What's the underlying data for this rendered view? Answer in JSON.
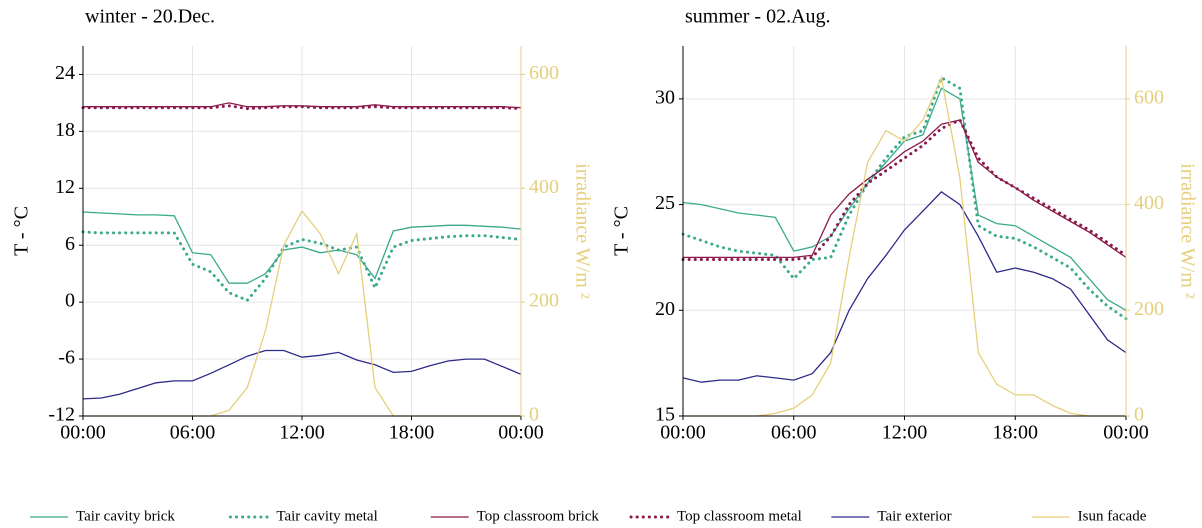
{
  "chart_data": [
    {
      "type": "line",
      "title": "winter - 20.Dec.",
      "ylabel": "T - °C",
      "y2label": "irradiance W/m ²",
      "x": [
        0,
        1,
        2,
        3,
        4,
        5,
        6,
        7,
        8,
        9,
        10,
        11,
        12,
        13,
        14,
        15,
        16,
        17,
        18,
        19,
        20,
        21,
        22,
        23,
        24
      ],
      "xlim": [
        0,
        24
      ],
      "xticks": [
        {
          "value": 0,
          "label": "00:00"
        },
        {
          "value": 6,
          "label": "06:00"
        },
        {
          "value": 12,
          "label": "12:00"
        },
        {
          "value": 18,
          "label": "18:00"
        },
        {
          "value": 24,
          "label": "00:00"
        }
      ],
      "ylim": [
        -12,
        27
      ],
      "yticks": [
        -12,
        -6,
        0,
        6,
        12,
        18,
        24
      ],
      "y2lim": [
        0,
        650
      ],
      "y2ticks": [
        0,
        200,
        400,
        600
      ],
      "grid": true,
      "series": [
        {
          "name": "Tair cavity brick",
          "color": "#3aaa8c",
          "style": "solid",
          "values": [
            9.5,
            9.4,
            9.3,
            9.2,
            9.2,
            9.1,
            5.2,
            5.0,
            2.0,
            2.0,
            3.0,
            5.5,
            5.8,
            5.2,
            5.5,
            5.0,
            2.5,
            7.5,
            7.9,
            8.0,
            8.1,
            8.1,
            8.0,
            7.9,
            7.7
          ]
        },
        {
          "name": "Tair cavity metal",
          "color": "#3aaa8c",
          "style": "dotted",
          "values": [
            7.4,
            7.3,
            7.3,
            7.3,
            7.3,
            7.3,
            4.0,
            3.2,
            1.0,
            0.2,
            2.5,
            5.8,
            6.6,
            6.2,
            5.5,
            5.8,
            1.5,
            5.8,
            6.5,
            6.7,
            6.9,
            7.0,
            7.0,
            6.8,
            6.6
          ]
        },
        {
          "name": "Top classroom brick",
          "color": "#8b1a4a",
          "style": "solid",
          "values": [
            20.6,
            20.6,
            20.6,
            20.6,
            20.6,
            20.6,
            20.6,
            20.6,
            21.0,
            20.6,
            20.6,
            20.7,
            20.7,
            20.6,
            20.6,
            20.6,
            20.8,
            20.6,
            20.6,
            20.6,
            20.6,
            20.6,
            20.6,
            20.6,
            20.5
          ]
        },
        {
          "name": "Top classroom metal",
          "color": "#8b1a4a",
          "style": "dotted",
          "values": [
            20.5,
            20.5,
            20.5,
            20.5,
            20.5,
            20.5,
            20.5,
            20.5,
            20.7,
            20.4,
            20.5,
            20.6,
            20.6,
            20.5,
            20.5,
            20.5,
            20.6,
            20.5,
            20.5,
            20.5,
            20.5,
            20.5,
            20.5,
            20.5,
            20.4
          ]
        },
        {
          "name": "Tair exterior",
          "color": "#2e2a8a",
          "style": "solid",
          "values": [
            -10.2,
            -10.1,
            -9.7,
            -9.1,
            -8.5,
            -8.3,
            -8.3,
            -7.5,
            -6.6,
            -5.7,
            -5.1,
            -5.1,
            -5.8,
            -5.6,
            -5.3,
            -6.1,
            -6.6,
            -7.4,
            -7.3,
            -6.7,
            -6.2,
            -6.0,
            -6.0,
            -6.8,
            -7.6
          ]
        },
        {
          "name": "Isun facade",
          "color": "#e6cf7c",
          "style": "solid",
          "axis": "y2",
          "values": [
            0,
            0,
            0,
            0,
            0,
            0,
            0,
            0,
            10,
            50,
            150,
            300,
            360,
            320,
            250,
            320,
            50,
            0,
            0,
            0,
            0,
            0,
            0,
            0,
            0
          ]
        }
      ]
    },
    {
      "type": "line",
      "title": "summer - 02.Aug.",
      "ylabel": "T - °C",
      "y2label": "irradiance W/m ²",
      "x": [
        0,
        1,
        2,
        3,
        4,
        5,
        6,
        7,
        8,
        9,
        10,
        11,
        12,
        13,
        14,
        15,
        16,
        17,
        18,
        19,
        20,
        21,
        22,
        23,
        24
      ],
      "xlim": [
        0,
        24
      ],
      "xticks": [
        {
          "value": 0,
          "label": "00:00"
        },
        {
          "value": 6,
          "label": "06:00"
        },
        {
          "value": 12,
          "label": "12:00"
        },
        {
          "value": 18,
          "label": "18:00"
        },
        {
          "value": 24,
          "label": "00:00"
        }
      ],
      "ylim": [
        15,
        32.5
      ],
      "yticks": [
        15,
        20,
        25,
        30
      ],
      "y2lim": [
        0,
        700
      ],
      "y2ticks": [
        0,
        200,
        400,
        600
      ],
      "grid": true,
      "series": [
        {
          "color": "#3aaa8c",
          "style": "solid",
          "values": [
            25.1,
            25.0,
            24.8,
            24.6,
            24.5,
            24.4,
            22.8,
            23.0,
            23.5,
            24.8,
            26.0,
            27.0,
            28.0,
            28.3,
            30.5,
            30.0,
            24.5,
            24.1,
            24.0,
            23.5,
            23.0,
            22.5,
            21.5,
            20.5,
            20.0
          ]
        },
        {
          "color": "#3aaa8c",
          "style": "dotted",
          "values": [
            23.6,
            23.3,
            23.0,
            22.8,
            22.7,
            22.6,
            21.5,
            22.4,
            22.5,
            24.5,
            26.0,
            27.2,
            28.2,
            28.5,
            31.0,
            30.5,
            24.0,
            23.5,
            23.4,
            23.0,
            22.5,
            22.0,
            21.0,
            20.2,
            19.6
          ]
        },
        {
          "color": "#8b1a4a",
          "style": "solid",
          "values": [
            22.5,
            22.5,
            22.5,
            22.5,
            22.5,
            22.5,
            22.5,
            22.6,
            24.5,
            25.5,
            26.2,
            26.8,
            27.5,
            28.0,
            28.8,
            29.0,
            27.0,
            26.3,
            25.8,
            25.2,
            24.7,
            24.2,
            23.7,
            23.1,
            22.5
          ]
        },
        {
          "color": "#8b1a4a",
          "style": "dotted",
          "values": [
            22.4,
            22.4,
            22.4,
            22.4,
            22.4,
            22.4,
            22.4,
            22.5,
            23.5,
            25.0,
            26.0,
            26.6,
            27.2,
            27.8,
            28.6,
            29.0,
            27.2,
            26.3,
            25.8,
            25.3,
            24.8,
            24.3,
            23.8,
            23.2,
            22.6
          ]
        },
        {
          "color": "#2e2a8a",
          "style": "solid",
          "values": [
            16.8,
            16.6,
            16.7,
            16.7,
            16.9,
            16.8,
            16.7,
            17.0,
            18.0,
            20.0,
            21.5,
            22.6,
            23.8,
            24.7,
            25.6,
            25.0,
            23.5,
            21.8,
            22.0,
            21.8,
            21.5,
            21.0,
            19.8,
            18.6,
            18.0
          ]
        },
        {
          "color": "#e6cf7c",
          "style": "solid",
          "axis": "y2",
          "values": [
            0,
            0,
            0,
            0,
            0,
            5,
            15,
            40,
            100,
            300,
            480,
            540,
            520,
            560,
            640,
            450,
            120,
            60,
            40,
            40,
            20,
            5,
            0,
            0,
            0
          ]
        }
      ]
    }
  ]
}
